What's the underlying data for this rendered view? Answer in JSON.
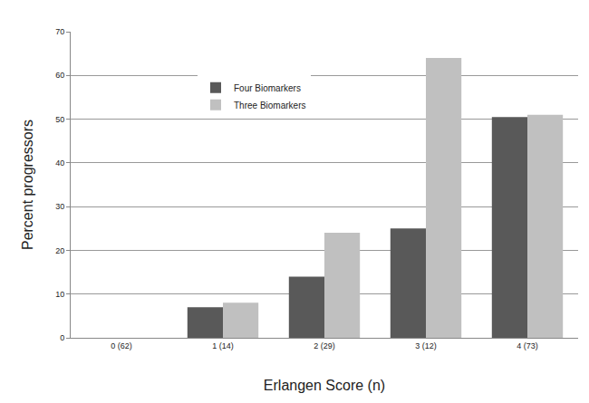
{
  "chart_data": {
    "type": "bar",
    "x_label": "Erlangen Score (n)",
    "y_label": "Percent progressors",
    "categories": [
      "0 (62)",
      "1 (14)",
      "2 (29)",
      "3 (12)",
      "4 (73)"
    ],
    "series": [
      {
        "name": "Four Biomarkers",
        "color": "#595959",
        "values": [
          0,
          7,
          14,
          25,
          50.5
        ]
      },
      {
        "name": "Three Biomarkers",
        "color": "#c0c0c0",
        "values": [
          0,
          8,
          24,
          64,
          51
        ]
      }
    ],
    "ylim": [
      0,
      70
    ],
    "yticks": [
      0,
      10,
      20,
      30,
      40,
      50,
      60,
      70
    ],
    "grid": true,
    "legend": "top left"
  }
}
